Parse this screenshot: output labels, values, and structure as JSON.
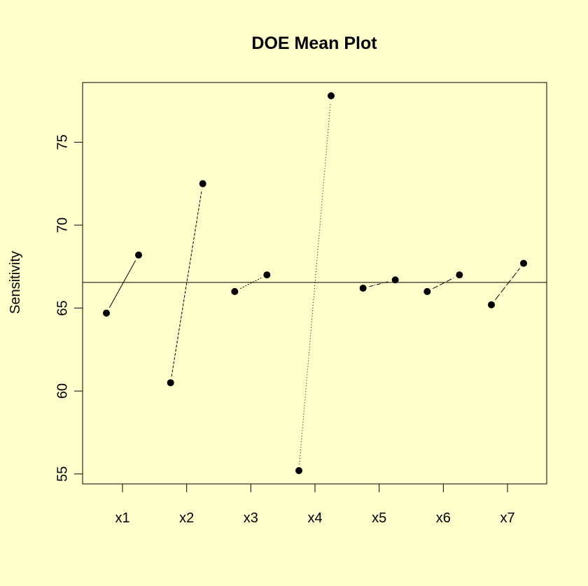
{
  "chart_data": {
    "type": "scatter",
    "title": "DOE Mean Plot",
    "xlabel": "",
    "ylabel": "Sensitivity",
    "categories": [
      "x1",
      "x2",
      "x3",
      "x4",
      "x5",
      "x6",
      "x7"
    ],
    "series": [
      {
        "values": [
          64.7,
          60.5,
          66.0,
          55.2,
          66.2,
          66.0,
          65.2
        ]
      },
      {
        "values": [
          68.2,
          72.5,
          67.0,
          77.8,
          66.7,
          67.0,
          67.7
        ]
      }
    ],
    "grand_mean": 66.55,
    "ylim": [
      54.4,
      78.6
    ],
    "yticks": [
      55,
      60,
      65,
      70,
      75
    ],
    "grid": false,
    "legend": "none",
    "colors": {
      "background": "#ffffcc",
      "points": "#000000",
      "lines": "#000000"
    }
  }
}
